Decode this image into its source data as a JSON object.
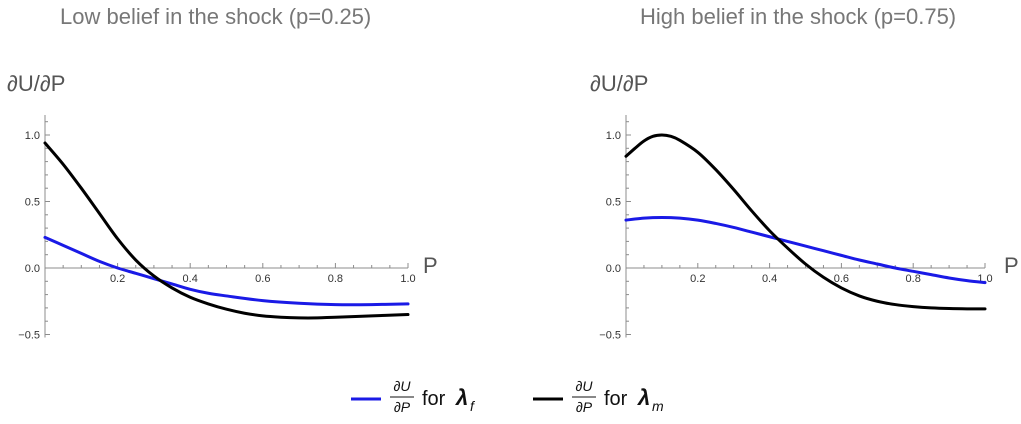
{
  "chart_data": [
    {
      "type": "line",
      "title": "Low belief in the shock (p=0.25)",
      "ylabel": "∂U/∂P",
      "xlabel": "P",
      "xlim": [
        0,
        1.0
      ],
      "ylim": [
        -0.5,
        1.15
      ],
      "x_ticks": [
        "0.2",
        "0.4",
        "0.6",
        "0.8",
        "1.0"
      ],
      "y_ticks": [
        "1.0",
        "0.5",
        "0.0",
        "−0.5"
      ],
      "grid": false,
      "series": [
        {
          "name": "λf",
          "color": "#1a1ae6",
          "x": [
            0,
            0.05,
            0.1,
            0.15,
            0.2,
            0.25,
            0.3,
            0.35,
            0.4,
            0.45,
            0.5,
            0.6,
            0.7,
            0.8,
            0.9,
            1.0
          ],
          "y": [
            0.23,
            0.17,
            0.11,
            0.05,
            0.0,
            -0.04,
            -0.08,
            -0.12,
            -0.16,
            -0.19,
            -0.21,
            -0.245,
            -0.265,
            -0.275,
            -0.275,
            -0.27
          ]
        },
        {
          "name": "λm",
          "color": "#000000",
          "x": [
            0,
            0.05,
            0.1,
            0.15,
            0.2,
            0.25,
            0.3,
            0.35,
            0.4,
            0.45,
            0.5,
            0.55,
            0.6,
            0.65,
            0.7,
            0.75,
            0.8,
            0.9,
            1.0
          ],
          "y": [
            0.94,
            0.78,
            0.6,
            0.41,
            0.22,
            0.06,
            -0.06,
            -0.15,
            -0.22,
            -0.27,
            -0.31,
            -0.34,
            -0.36,
            -0.37,
            -0.375,
            -0.375,
            -0.37,
            -0.36,
            -0.35
          ]
        }
      ]
    },
    {
      "type": "line",
      "title": "High belief in the shock (p=0.75)",
      "ylabel": "∂U/∂P",
      "xlabel": "P",
      "xlim": [
        0,
        1.0
      ],
      "ylim": [
        -0.5,
        1.15
      ],
      "x_ticks": [
        "0.2",
        "0.4",
        "0.6",
        "0.8",
        "1.0"
      ],
      "y_ticks": [
        "1.0",
        "0.5",
        "0.0",
        "−0.5"
      ],
      "grid": false,
      "series": [
        {
          "name": "λf",
          "color": "#1a1ae6",
          "x": [
            0,
            0.05,
            0.1,
            0.15,
            0.2,
            0.25,
            0.3,
            0.35,
            0.4,
            0.45,
            0.5,
            0.55,
            0.6,
            0.65,
            0.7,
            0.75,
            0.8,
            0.85,
            0.9,
            0.95,
            1.0
          ],
          "y": [
            0.36,
            0.375,
            0.38,
            0.375,
            0.36,
            0.335,
            0.305,
            0.27,
            0.235,
            0.2,
            0.165,
            0.13,
            0.095,
            0.06,
            0.03,
            0.0,
            -0.025,
            -0.05,
            -0.075,
            -0.095,
            -0.11
          ]
        },
        {
          "name": "λm",
          "color": "#000000",
          "x": [
            0,
            0.025,
            0.05,
            0.075,
            0.1,
            0.125,
            0.15,
            0.2,
            0.25,
            0.3,
            0.35,
            0.4,
            0.45,
            0.5,
            0.55,
            0.6,
            0.65,
            0.7,
            0.75,
            0.8,
            0.85,
            0.9,
            0.95,
            1.0
          ],
          "y": [
            0.84,
            0.9,
            0.955,
            0.99,
            1.0,
            0.99,
            0.96,
            0.87,
            0.74,
            0.59,
            0.43,
            0.28,
            0.15,
            0.03,
            -0.07,
            -0.15,
            -0.21,
            -0.25,
            -0.275,
            -0.29,
            -0.3,
            -0.305,
            -0.307,
            -0.307
          ]
        }
      ]
    }
  ],
  "legend": {
    "items": [
      {
        "series": "λf",
        "color": "#1a1ae6",
        "num": "∂U",
        "den": "∂P",
        "word": "for",
        "sym": "λ",
        "sub": "f"
      },
      {
        "series": "λm",
        "color": "#000000",
        "num": "∂U",
        "den": "∂P",
        "word": "for",
        "sym": "λ",
        "sub": "m"
      }
    ]
  }
}
